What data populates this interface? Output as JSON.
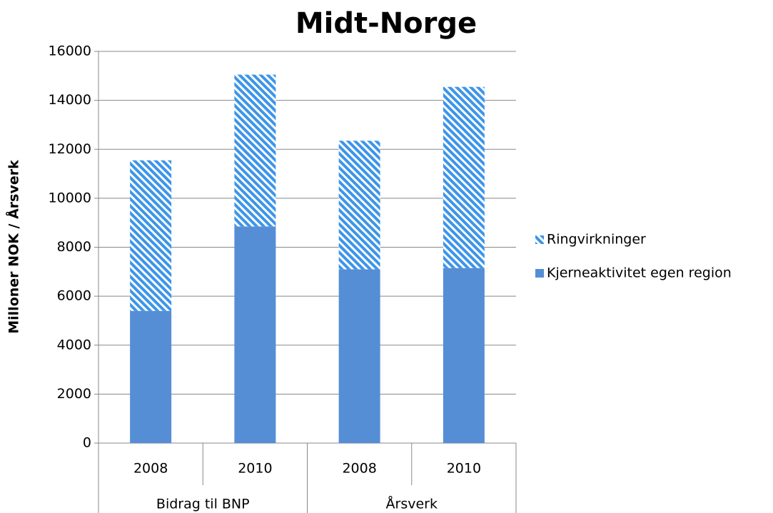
{
  "chart_data": {
    "type": "stacked_bar",
    "title": "Midt-Norge",
    "y_label": "Milloner NOK / Årsverk",
    "categories": [
      "2008",
      "2010",
      "2008",
      "2010"
    ],
    "groups": [
      {
        "name": "Bidrag til BNP",
        "size": 2
      },
      {
        "name": "Årsverk",
        "size": 2
      }
    ],
    "series": [
      {
        "name": "Kjerneaktivitet egen region",
        "color": "#558ed5",
        "hatch": false,
        "values": [
          5400,
          8850,
          7100,
          7150
        ]
      },
      {
        "name": "Ringvirkninger",
        "color": "#3d95e8",
        "hatch": true,
        "values": [
          6150,
          6200,
          5250,
          7400
        ]
      }
    ],
    "ylim": [
      0,
      16000
    ],
    "yticks": [
      0,
      2000,
      4000,
      6000,
      8000,
      10000,
      12000,
      14000,
      16000
    ],
    "grid": true,
    "legend": "right"
  }
}
